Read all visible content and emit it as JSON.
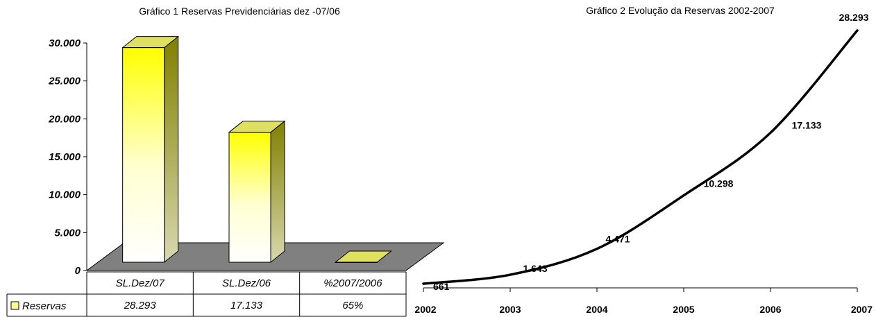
{
  "chart_data": [
    {
      "type": "bar",
      "title": "Gráfico 1 Reservas Previdenciárias dez -07/06",
      "categories": [
        "SL.Dez/07",
        "SL.Dez/06",
        "%2007/2006"
      ],
      "series": [
        {
          "name": "Reservas",
          "values": [
            28293,
            17133,
            0.65
          ],
          "display": [
            "28.293",
            "17.133",
            "65%"
          ]
        }
      ],
      "yticks": [
        "0",
        "5.000",
        "10.000",
        "15.000",
        "20.000",
        "25.000",
        "30.000"
      ],
      "ylim": [
        0,
        30000
      ],
      "legend": "data-table-left",
      "bar_color": "#ffff00",
      "three_d": true
    },
    {
      "type": "line",
      "title": "Gráfico 2 Evolução da Reservas 2002-2007",
      "x": [
        "2002",
        "2003",
        "2004",
        "2005",
        "2006",
        "2007"
      ],
      "values": [
        661,
        1643,
        4471,
        10298,
        17133,
        28293
      ],
      "labels": [
        "661",
        "1.643",
        "4.471",
        "10.298",
        "17.133",
        "28.293"
      ],
      "line_color": "#000000"
    }
  ]
}
